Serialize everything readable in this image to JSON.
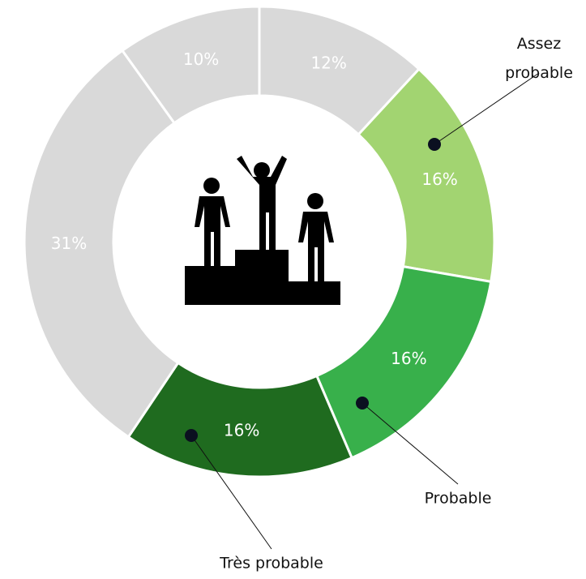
{
  "chart_data": {
    "type": "donut",
    "categories": [
      null,
      "Assez probable",
      "Probable",
      "Très probable",
      null,
      null
    ],
    "values": [
      12,
      16,
      16,
      16,
      31,
      10
    ],
    "value_labels": [
      "12%",
      "16%",
      "16%",
      "16%",
      "31%",
      "10%"
    ],
    "colors": [
      "#d9d9d9",
      "#a2d471",
      "#38b04b",
      "#1f6b1f",
      "#d9d9d9",
      "#d9d9d9"
    ]
  }
}
